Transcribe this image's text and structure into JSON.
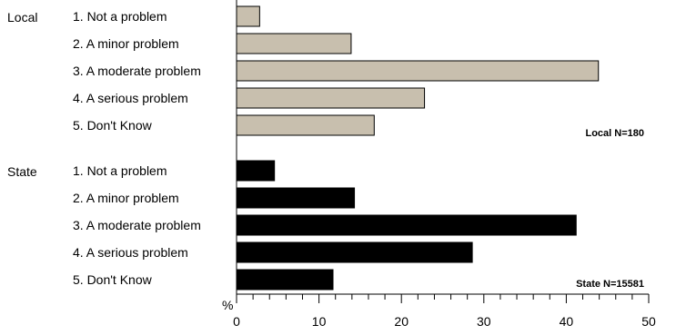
{
  "chart_data": {
    "type": "bar",
    "orientation": "horizontal",
    "x_unit_label": "%",
    "xlim": [
      0,
      50
    ],
    "x_ticks": [
      "0",
      "10",
      "20",
      "30",
      "40",
      "50"
    ],
    "groups": [
      {
        "name": "Local",
        "note": "Local N=180",
        "color": "#c8bfae",
        "categories": [
          "1. Not a problem",
          "2. A minor problem",
          "3. A moderate problem",
          "4. A serious problem",
          "5. Don't Know"
        ],
        "values": [
          2.8,
          13.9,
          43.9,
          22.8,
          16.7
        ]
      },
      {
        "name": "State",
        "note": "State N=15581",
        "color": "#000000",
        "categories": [
          "1. Not a problem",
          "2. A minor problem",
          "3. A moderate problem",
          "4. A serious problem",
          "5. Don't Know"
        ],
        "values": [
          4.6,
          14.3,
          41.2,
          28.6,
          11.7
        ]
      }
    ]
  }
}
